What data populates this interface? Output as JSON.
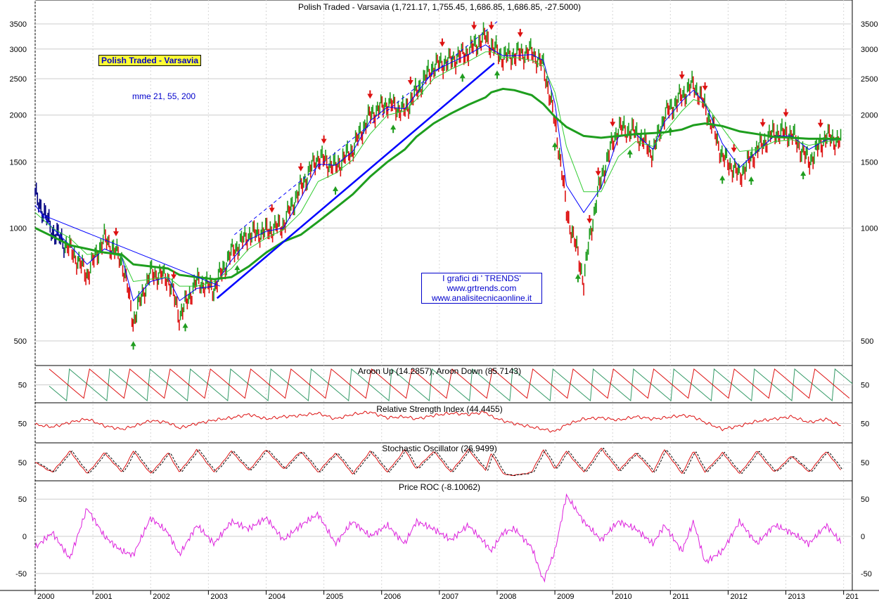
{
  "badge": "Polish Traded -  Varsavia",
  "mme": "mme 21, 55, 200",
  "trends": {
    "line1": "I grafici di ' TRENDS'",
    "line2": "www.grtrends.com",
    "line3": "www.analisitecnicaonline.it"
  },
  "colors": {
    "up_bar": "#1f9d1f",
    "down_bar": "#dd1111",
    "early_bar": "#000080",
    "ma_fast": "#0000ff",
    "ma_mid": "#33cc33",
    "ma_slow": "#1e9e1e",
    "aroon_up": "#339966",
    "aroon_down": "#dd1111",
    "rsi": "#dd1111",
    "stoch": "#dd1111",
    "roc": "#dd22dd"
  },
  "chart_data": [
    {
      "type": "line",
      "title": "Polish Traded - Varsavia (1,721.17, 1,755.45, 1,686.85, 1,686.85, -27.5000)",
      "scale": "log",
      "yticks": [
        500,
        1000,
        1500,
        2000,
        2500,
        3000,
        3500
      ],
      "x_labels": [
        "2000",
        "2001",
        "2002",
        "2003",
        "2004",
        "2005",
        "2006",
        "2007",
        "2008",
        "2009",
        "2010",
        "2011",
        "2012",
        "2013",
        "201"
      ],
      "x": [
        2000.0,
        2000.3,
        2000.6,
        2000.9,
        2001.2,
        2001.5,
        2001.7,
        2002.0,
        2002.3,
        2002.5,
        2002.8,
        2003.1,
        2003.4,
        2003.7,
        2004.0,
        2004.3,
        2004.6,
        2004.9,
        2005.2,
        2005.5,
        2005.8,
        2006.1,
        2006.4,
        2006.6,
        2006.9,
        2007.2,
        2007.5,
        2007.8,
        2007.9,
        2008.1,
        2008.3,
        2008.6,
        2008.8,
        2009.0,
        2009.2,
        2009.5,
        2009.8,
        2010.1,
        2010.4,
        2010.7,
        2010.9,
        2011.2,
        2011.4,
        2011.6,
        2011.9,
        2012.2,
        2012.5,
        2012.8,
        2013.1,
        2013.4,
        2013.7,
        2013.95
      ],
      "y": [
        1220,
        980,
        880,
        750,
        940,
        820,
        560,
        760,
        740,
        580,
        720,
        690,
        860,
        960,
        980,
        1020,
        1280,
        1550,
        1450,
        1620,
        2000,
        2150,
        2050,
        2300,
        2700,
        2800,
        2950,
        3250,
        3050,
        2850,
        2900,
        2950,
        2700,
        1900,
        1100,
        720,
        1350,
        1850,
        1800,
        1580,
        2000,
        2250,
        2420,
        2100,
        1550,
        1380,
        1620,
        1800,
        1780,
        1500,
        1760,
        1690
      ],
      "series": [
        {
          "name": "mme 21",
          "y": [
            1150,
            1000,
            900,
            800,
            880,
            840,
            640,
            720,
            740,
            640,
            690,
            700,
            820,
            930,
            980,
            1000,
            1200,
            1480,
            1470,
            1600,
            1930,
            2100,
            2080,
            2280,
            2620,
            2760,
            2900,
            3080,
            3000,
            2880,
            2880,
            2900,
            2800,
            2150,
            1300,
            1100,
            1280,
            1750,
            1780,
            1620,
            1920,
            2180,
            2330,
            2150,
            1680,
            1450,
            1600,
            1760,
            1760,
            1620,
            1720,
            1720
          ]
        },
        {
          "name": "mme 55",
          "y": [
            1100,
            1000,
            940,
            850,
            860,
            840,
            720,
            730,
            740,
            700,
            700,
            720,
            780,
            880,
            940,
            990,
            1100,
            1330,
            1400,
            1520,
            1780,
            2000,
            2050,
            2200,
            2500,
            2650,
            2780,
            2950,
            2950,
            2850,
            2850,
            2800,
            2700,
            2300,
            1650,
            1250,
            1250,
            1550,
            1700,
            1650,
            1800,
            2050,
            2200,
            2150,
            1850,
            1600,
            1620,
            1700,
            1720,
            1660,
            1700,
            1720
          ]
        },
        {
          "name": "mme 200",
          "y": [
            1000,
            950,
            900,
            880,
            860,
            850,
            800,
            790,
            780,
            750,
            740,
            730,
            740,
            790,
            860,
            920,
            960,
            1040,
            1130,
            1230,
            1370,
            1500,
            1620,
            1750,
            1900,
            2020,
            2130,
            2230,
            2300,
            2350,
            2330,
            2260,
            2140,
            1980,
            1860,
            1760,
            1740,
            1760,
            1780,
            1790,
            1800,
            1830,
            1880,
            1900,
            1870,
            1810,
            1780,
            1750,
            1740,
            1730,
            1730,
            1730
          ]
        }
      ]
    },
    {
      "type": "line",
      "title": "Aroon Up (14.2857), Aroon Down (85.7143)",
      "yticks": [
        50
      ],
      "series": [
        {
          "name": "Aroon Up"
        },
        {
          "name": "Aroon Down"
        }
      ]
    },
    {
      "type": "line",
      "title": "Relative Strength Index (44.4455)",
      "yticks": [
        50
      ],
      "y": [
        48,
        44,
        52,
        58,
        46,
        40,
        45,
        55,
        52,
        42,
        50,
        56,
        60,
        66,
        58,
        62,
        64,
        68,
        58,
        66,
        70,
        60,
        62,
        58,
        64,
        68,
        66,
        70,
        62,
        55,
        50,
        44,
        40,
        36,
        48,
        58,
        60,
        56,
        62,
        58,
        60,
        64,
        62,
        52,
        40,
        46,
        54,
        58,
        62,
        52,
        58,
        46
      ]
    },
    {
      "type": "line",
      "title": "Stochastic Oscillator (26.9499)",
      "yticks": [
        50
      ],
      "y": [
        50,
        20,
        85,
        15,
        80,
        20,
        85,
        15,
        80,
        20,
        90,
        20,
        85,
        25,
        90,
        30,
        85,
        20,
        80,
        15,
        85,
        20,
        90,
        30,
        85,
        20,
        90,
        25,
        80,
        15,
        10,
        20,
        90,
        30,
        85,
        20,
        95,
        25,
        80,
        20,
        90,
        15,
        85,
        20,
        80,
        15,
        85,
        20,
        70,
        20,
        85,
        27
      ]
    },
    {
      "type": "line",
      "title": "Price ROC (-8.10062)",
      "yticks": [
        -50,
        0,
        50
      ],
      "y": [
        -15,
        5,
        -30,
        38,
        0,
        -20,
        -25,
        25,
        5,
        -25,
        15,
        -10,
        20,
        10,
        25,
        -5,
        15,
        30,
        -10,
        20,
        0,
        15,
        -10,
        20,
        10,
        -5,
        15,
        -10,
        -20,
        5,
        10,
        -15,
        -60,
        -20,
        55,
        20,
        -5,
        20,
        10,
        -10,
        15,
        -20,
        20,
        -35,
        -20,
        20,
        -10,
        15,
        5,
        -10,
        15,
        -8
      ]
    }
  ]
}
